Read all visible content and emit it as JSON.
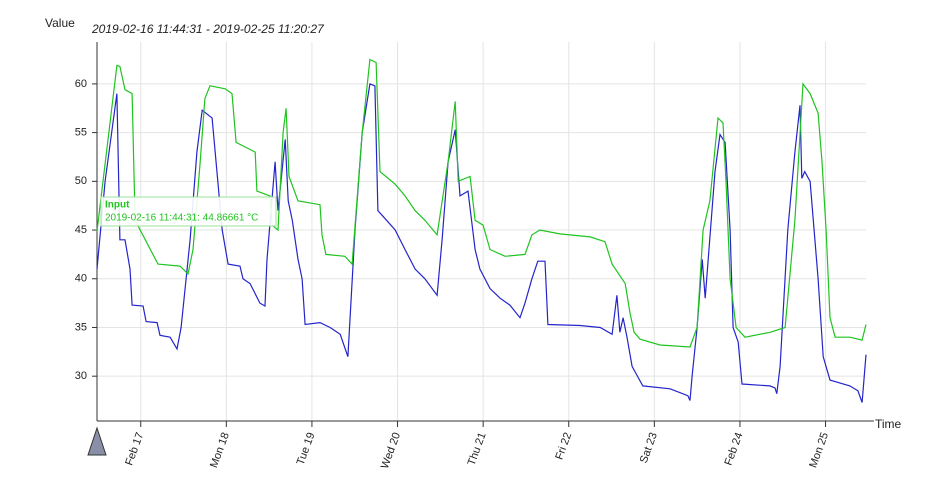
{
  "chart_data": {
    "type": "line",
    "title": "2019-02-16 11:44:31 - 2019-02-25 11:20:27",
    "y_label": "Value",
    "x_label": "Time",
    "xlim": [
      "2019-02-16 11:44:31",
      "2019-02-25 11:20:27"
    ],
    "ylim": [
      25.4,
      64.3
    ],
    "yticks": [
      30,
      35,
      40,
      45,
      50,
      55,
      60
    ],
    "xticks": [
      {
        "value": "2019-02-17 00:00",
        "label": "Feb 17"
      },
      {
        "value": "2019-02-18 00:00",
        "label": "Mon 18"
      },
      {
        "value": "2019-02-19 00:00",
        "label": "Tue 19"
      },
      {
        "value": "2019-02-20 00:00",
        "label": "Wed 20"
      },
      {
        "value": "2019-02-21 00:00",
        "label": "Thu 21"
      },
      {
        "value": "2019-02-22 00:00",
        "label": "Fri 22"
      },
      {
        "value": "2019-02-23 00:00",
        "label": "Sat 23"
      },
      {
        "value": "2019-02-24 00:00",
        "label": "Feb 24"
      },
      {
        "value": "2019-02-25 00:00",
        "label": "Mon 25"
      }
    ],
    "grid": true,
    "tooltip": {
      "title": "Input",
      "text": "2019-02-16 11:44:31: 44.86661 °C"
    },
    "series": [
      {
        "name": "Input",
        "color": "#1fc41f",
        "x": [
          "2019-02-16 11:44:31",
          "2019-02-16 17:20",
          "2019-02-16 18:10",
          "2019-02-16 19:35",
          "2019-02-16 21:35",
          "2019-02-16 22:25",
          "2019-02-17 04:50",
          "2019-02-17 11:00",
          "2019-02-17 13:15",
          "2019-02-17 14:40",
          "2019-02-17 16:40",
          "2019-02-17 18:00",
          "2019-02-17 19:25",
          "2019-02-17 23:40",
          "2019-02-18 01:35",
          "2019-02-18 02:45",
          "2019-02-18 08:05",
          "2019-02-18 08:35",
          "2019-02-18 12:15",
          "2019-02-18 12:50",
          "2019-02-18 14:30",
          "2019-02-18 15:55",
          "2019-02-18 16:45",
          "2019-02-18 17:35",
          "2019-02-18 20:05",
          "2019-02-19 02:15",
          "2019-02-19 02:50",
          "2019-02-19 03:55",
          "2019-02-19 09:15",
          "2019-02-19 11:15",
          "2019-02-19 14:05",
          "2019-02-19 16:15",
          "2019-02-19 18:00",
          "2019-02-19 19:05",
          "2019-02-19 23:20",
          "2019-02-20 02:05",
          "2019-02-20 04:55",
          "2019-02-20 07:40",
          "2019-02-20 11:05",
          "2019-02-20 14:10",
          "2019-02-20 16:10",
          "2019-02-20 17:00",
          "2019-02-20 20:20",
          "2019-02-20 21:45",
          "2019-02-21 00:00",
          "2019-02-21 01:55",
          "2019-02-21 06:10",
          "2019-02-21 11:45",
          "2019-02-21 13:40",
          "2019-02-21 15:55",
          "2019-02-21 21:30",
          "2019-02-22 06:00",
          "2019-02-22 10:10",
          "2019-02-22 12:10",
          "2019-02-22 15:50",
          "2019-02-22 17:10",
          "2019-02-22 18:20",
          "2019-02-22 20:00",
          "2019-02-23 01:35",
          "2019-02-23 10:00",
          "2019-02-23 12:00",
          "2019-02-23 13:40",
          "2019-02-23 15:35",
          "2019-02-23 17:50",
          "2019-02-23 19:15",
          "2019-02-23 20:05",
          "2019-02-23 21:15",
          "2019-02-23 22:55",
          "2019-02-24 01:25",
          "2019-02-24 08:25",
          "2019-02-24 12:40",
          "2019-02-24 15:25",
          "2019-02-24 17:40",
          "2019-02-24 19:40",
          "2019-02-24 21:55",
          "2019-02-24 23:00",
          "2019-02-25 00:10",
          "2019-02-25 01:15",
          "2019-02-25 02:40",
          "2019-02-25 06:50",
          "2019-02-25 10:15",
          "2019-02-25 11:20:27"
        ],
        "values": [
          44.86661,
          61.9,
          61.8,
          59.4,
          59,
          46,
          41.5,
          41.3,
          40.5,
          43,
          52,
          58.5,
          59.8,
          59.5,
          59,
          54,
          53,
          49,
          48.5,
          45.5,
          45,
          55,
          57.5,
          50.5,
          48,
          47.6,
          44.5,
          42.5,
          42.3,
          41.5,
          55,
          62.5,
          62.2,
          51,
          49.7,
          48.5,
          47,
          46,
          44.5,
          52,
          58.2,
          50,
          50.5,
          46,
          45.5,
          43,
          42.3,
          42.5,
          44.5,
          45,
          44.6,
          44.3,
          43.8,
          41.5,
          39.5,
          36.5,
          34.5,
          33.8,
          33.2,
          33,
          35,
          45,
          48,
          56.5,
          56,
          50,
          40,
          35,
          34,
          34.5,
          35,
          46,
          60,
          59,
          57,
          52,
          45,
          36,
          34,
          34,
          33.7,
          35.3
        ]
      },
      {
        "color": "#2424cc",
        "x": [
          "2019-02-16 11:44:31",
          "2019-02-16 14:00",
          "2019-02-16 17:20",
          "2019-02-16 18:10",
          "2019-02-16 19:35",
          "2019-02-16 21:00",
          "2019-02-16 21:35",
          "2019-02-17 00:40",
          "2019-02-17 01:30",
          "2019-02-17 04:35",
          "2019-02-17 05:25",
          "2019-02-17 08:15",
          "2019-02-17 10:10",
          "2019-02-17 11:20",
          "2019-02-17 13:50",
          "2019-02-17 15:45",
          "2019-02-17 17:15",
          "2019-02-17 20:00",
          "2019-02-17 22:50",
          "2019-02-18 00:30",
          "2019-02-18 03:50",
          "2019-02-18 04:40",
          "2019-02-18 06:40",
          "2019-02-18 09:25",
          "2019-02-18 10:50",
          "2019-02-18 11:25",
          "2019-02-18 13:40",
          "2019-02-18 14:30",
          "2019-02-18 16:30",
          "2019-02-18 17:20",
          "2019-02-18 18:30",
          "2019-02-18 20:05",
          "2019-02-18 21:15",
          "2019-02-18 22:05",
          "2019-02-19 02:15",
          "2019-02-19 05:05",
          "2019-02-19 07:55",
          "2019-02-19 10:05",
          "2019-02-19 12:05",
          "2019-02-19 14:05",
          "2019-02-19 16:15",
          "2019-02-19 17:40",
          "2019-02-19 18:30",
          "2019-02-19 23:20",
          "2019-02-20 02:05",
          "2019-02-20 04:55",
          "2019-02-20 07:40",
          "2019-02-20 11:05",
          "2019-02-20 12:30",
          "2019-02-20 14:10",
          "2019-02-20 16:10",
          "2019-02-20 17:30",
          "2019-02-20 19:45",
          "2019-02-20 21:45",
          "2019-02-20 23:05",
          "2019-02-21 01:55",
          "2019-02-21 04:45",
          "2019-02-21 07:30",
          "2019-02-21 10:20",
          "2019-02-21 11:45",
          "2019-02-21 13:40",
          "2019-02-21 15:20",
          "2019-02-21 17:20",
          "2019-02-21 18:10",
          "2019-02-22 03:10",
          "2019-02-22 08:50",
          "2019-02-22 12:10",
          "2019-02-22 13:30",
          "2019-02-22 14:20",
          "2019-02-22 15:15",
          "2019-02-22 16:20",
          "2019-02-22 17:45",
          "2019-02-22 20:45",
          "2019-02-23 04:25",
          "2019-02-23 09:25",
          "2019-02-23 10:00",
          "2019-02-23 10:35",
          "2019-02-23 12:00",
          "2019-02-23 13:25",
          "2019-02-23 14:15",
          "2019-02-23 17:00",
          "2019-02-23 18:25",
          "2019-02-23 19:50",
          "2019-02-23 21:15",
          "2019-02-23 22:05",
          "2019-02-23 23:30",
          "2019-02-24 00:35",
          "2019-02-24 08:25",
          "2019-02-24 09:50",
          "2019-02-24 10:20",
          "2019-02-24 11:15",
          "2019-02-24 13:25",
          "2019-02-24 15:25",
          "2019-02-24 16:50",
          "2019-02-24 17:20",
          "2019-02-24 18:10",
          "2019-02-24 19:40",
          "2019-02-24 21:55",
          "2019-02-24 23:20",
          "2019-02-25 01:15",
          "2019-02-25 06:50",
          "2019-02-25 09:05",
          "2019-02-25 10:15",
          "2019-02-25 11:20:27"
        ],
        "values": [
          41,
          50,
          59,
          44,
          44,
          41,
          37.3,
          37.2,
          35.6,
          35.5,
          34.2,
          34,
          32.8,
          35,
          44,
          53,
          57.3,
          56.5,
          45,
          41.5,
          41.3,
          40,
          39.5,
          37.5,
          37.2,
          42,
          52,
          47,
          54.3,
          48,
          46,
          42,
          40,
          35.3,
          35.5,
          35,
          34.3,
          32,
          45,
          55,
          60,
          59.8,
          47,
          45,
          43,
          41,
          40,
          38.3,
          44,
          52,
          55.3,
          48.5,
          49,
          43,
          41,
          39,
          38,
          37.3,
          36,
          37.5,
          40,
          41.8,
          41.8,
          35.3,
          35.2,
          35,
          34.3,
          38.3,
          34.5,
          36,
          34,
          31,
          29,
          28.7,
          28,
          27.5,
          30,
          35,
          42,
          38,
          51,
          54.8,
          54,
          45,
          35,
          33.5,
          29.2,
          29,
          28.8,
          28.2,
          31,
          45,
          53,
          57.8,
          50.3,
          51,
          50,
          40,
          32,
          29.6,
          29,
          28.5,
          27.3,
          32.2
        ]
      }
    ]
  }
}
